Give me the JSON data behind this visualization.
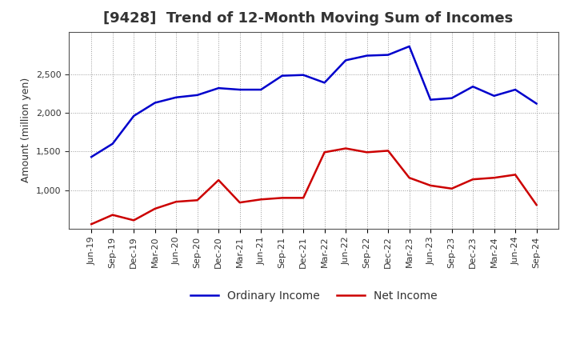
{
  "title": "[9428]  Trend of 12-Month Moving Sum of Incomes",
  "ylabel": "Amount (million yen)",
  "x_labels": [
    "Jun-19",
    "Sep-19",
    "Dec-19",
    "Mar-20",
    "Jun-20",
    "Sep-20",
    "Dec-20",
    "Mar-21",
    "Jun-21",
    "Sep-21",
    "Dec-21",
    "Mar-22",
    "Jun-22",
    "Sep-22",
    "Dec-22",
    "Mar-23",
    "Jun-23",
    "Sep-23",
    "Dec-23",
    "Mar-24",
    "Jun-24",
    "Sep-24"
  ],
  "ordinary_income": [
    1430,
    1600,
    1960,
    2130,
    2200,
    2230,
    2320,
    2300,
    2300,
    2480,
    2490,
    2390,
    2680,
    2740,
    2750,
    2860,
    2170,
    2190,
    2340,
    2220,
    2300,
    2120
  ],
  "net_income": [
    560,
    680,
    610,
    760,
    850,
    870,
    1130,
    840,
    880,
    900,
    900,
    1490,
    1540,
    1490,
    1510,
    1160,
    1060,
    1020,
    1140,
    1160,
    1200,
    810
  ],
  "ordinary_color": "#0000cc",
  "net_color": "#cc0000",
  "ylim_min": 500,
  "ylim_max": 3050,
  "yticks": [
    1000,
    1500,
    2000,
    2500
  ],
  "background_color": "#ffffff",
  "plot_bg_color": "#ffffff",
  "grid_color": "#999999",
  "title_fontsize": 13,
  "label_fontsize": 9,
  "tick_fontsize": 8,
  "legend_labels": [
    "Ordinary Income",
    "Net Income"
  ],
  "line_width": 1.8,
  "title_color": "#333333"
}
